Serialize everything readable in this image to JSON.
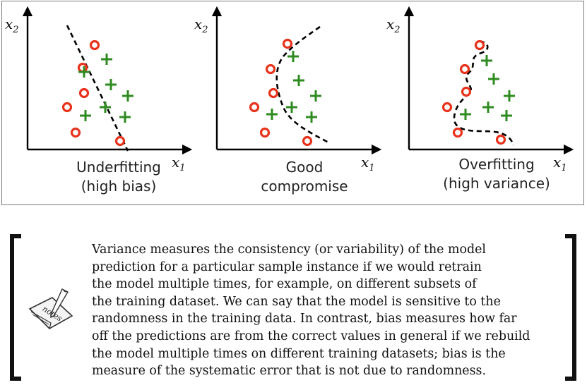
{
  "figure": {
    "axis_x_label": "x",
    "axis_x_sub": "1",
    "axis_y_label": "x",
    "axis_y_sub": "2",
    "panels": [
      {
        "caption_line1": "Underfitting",
        "caption_line2": "(high bias)"
      },
      {
        "caption_line1": "Good",
        "caption_line2": "compromise"
      },
      {
        "caption_line1": "Overfitting",
        "caption_line2": "(high variance)"
      }
    ],
    "colors": {
      "circle": "#e8321c",
      "plus": "#2e8b1f",
      "axis": "#000000"
    }
  },
  "note": {
    "icon": "notes-icon",
    "icon_label": "notes",
    "lines": [
      "Variance measures the consistency (or variability) of the model",
      "prediction for a particular sample instance if we would retrain",
      "the model multiple times, for example, on different subsets of",
      "the training dataset. We can say that the model is sensitive to the",
      "randomness in the training data. In contrast, bias measures how far",
      "off the predictions are from the correct values in general if we rebuild",
      "the model multiple times on different training datasets; bias is the",
      "measure of the systematic error that is not due to randomness."
    ]
  }
}
